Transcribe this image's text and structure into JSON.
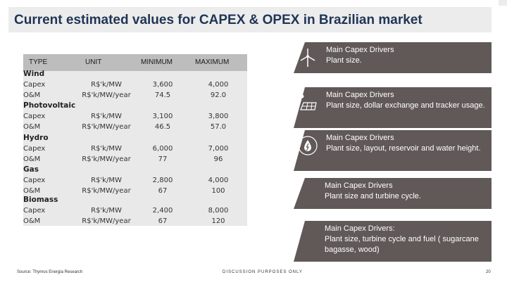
{
  "title": "Current estimated values for CAPEX & OPEX in Brazilian market",
  "table": {
    "headers": [
      "TYPE",
      "UNIT",
      "MINIMUM",
      "MAXIMUM"
    ],
    "groups": [
      {
        "name": "Wind",
        "rows": [
          {
            "type": "Capex",
            "unit": "R$'k/MW",
            "min": "3,600",
            "max": "4,000"
          },
          {
            "type": "O&M",
            "unit": "R$'k/MW/year",
            "min": "74.5",
            "max": "92.0"
          }
        ]
      },
      {
        "name": "Photovoltaic",
        "rows": [
          {
            "type": "Capex",
            "unit": "R$'k/MW",
            "min": "3,100",
            "max": "3,800"
          },
          {
            "type": "O&M",
            "unit": "R$'k/MW/year",
            "min": "46.5",
            "max": "57.0"
          }
        ]
      },
      {
        "name": "Hydro",
        "rows": [
          {
            "type": "Capex",
            "unit": "R$'k/MW",
            "min": "6,000",
            "max": "7,000"
          },
          {
            "type": "O&M",
            "unit": "R$'k/MW/year",
            "min": "77",
            "max": "96"
          }
        ]
      },
      {
        "name": "Gas",
        "rows": [
          {
            "type": "Capex",
            "unit": "R$'k/MW",
            "min": "2,800",
            "max": "4,000"
          },
          {
            "type": "O&M",
            "unit": "R$'k/MW/year",
            "min": "67",
            "max": "100"
          }
        ]
      },
      {
        "name": "Biomass",
        "rows": [
          {
            "type": "Capex",
            "unit": "R$'k/MW",
            "min": "2,400",
            "max": "8,000"
          },
          {
            "type": "O&M",
            "unit": "R$'k/MW/year",
            "min": "67",
            "max": "120"
          }
        ]
      }
    ]
  },
  "drivers": [
    {
      "heading": "Main Capex Drivers",
      "body": "Plant size.",
      "icon": "wind-turbine-icon"
    },
    {
      "heading": "Main Capex Drivers",
      "body": "Plant size, dollar exchange and tracker usage.",
      "icon": "solar-panel-icon"
    },
    {
      "heading": "Main Capex Drivers",
      "body": "Plant size, layout, reservoir and water height.",
      "icon": "water-drop-icon"
    },
    {
      "heading": "Main Capex Drivers",
      "body": "Plant size and turbine cycle.",
      "icon": ""
    },
    {
      "heading": "Main Capex Drivers:",
      "body": "Plant size,  turbine cycle and  fuel ( sugarcane bagasse, wood)",
      "icon": ""
    }
  ],
  "footer": {
    "source": "Source: Thymos Energia Research",
    "center": "DISCUSSION PURPOSES ONLY",
    "page": "20"
  }
}
